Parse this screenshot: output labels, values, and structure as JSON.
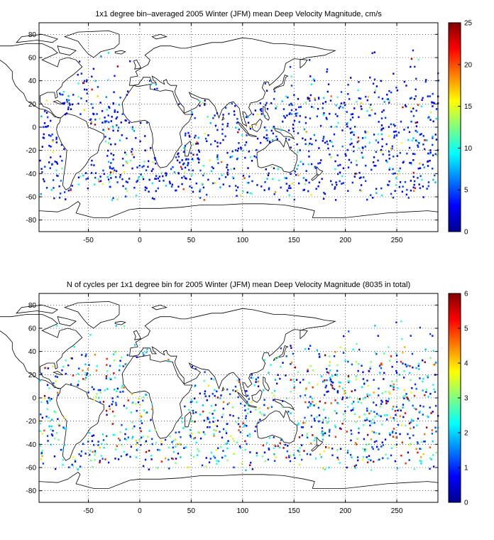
{
  "chart_data": [
    {
      "type": "heatmap",
      "title": "1x1 degree bin–averaged 2005 Winter (JFM) mean Deep Velocity Magnitude, cm/s",
      "xlabel": "",
      "ylabel": "",
      "xlim": [
        -98,
        290
      ],
      "ylim": [
        -90,
        90
      ],
      "x_ticks": [
        -50,
        0,
        50,
        100,
        150,
        200,
        250
      ],
      "y_ticks": [
        -80,
        -60,
        -40,
        -20,
        0,
        20,
        40,
        60,
        80
      ],
      "grid": "dotted",
      "colorbar": {
        "min": 0,
        "max": 25,
        "ticks": [
          0,
          5,
          10,
          15,
          20,
          25
        ],
        "colormap": "jet"
      }
    },
    {
      "type": "heatmap",
      "title": "N of cycles per 1x1 degree bin for 2005 Winter (JFM) mean Deep Velocity Magnitude (8035 in total)",
      "xlabel": "",
      "ylabel": "",
      "xlim": [
        -98,
        290
      ],
      "ylim": [
        -90,
        90
      ],
      "x_ticks": [
        -50,
        0,
        50,
        100,
        150,
        200,
        250
      ],
      "y_ticks": [
        -80,
        -60,
        -40,
        -20,
        0,
        20,
        40,
        60,
        80
      ],
      "grid": "dotted",
      "colorbar": {
        "min": 0,
        "max": 6,
        "ticks": [
          0,
          1,
          2,
          3,
          4,
          5,
          6
        ],
        "colormap": "jet"
      }
    }
  ]
}
